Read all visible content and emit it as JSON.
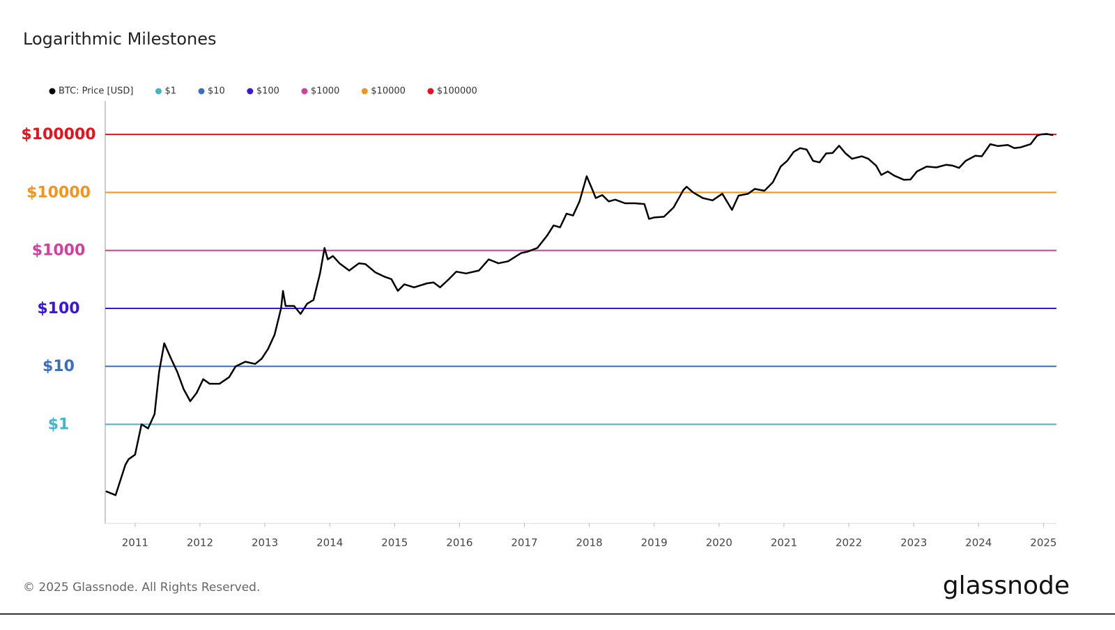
{
  "chart_data": {
    "type": "line",
    "title": "Logarithmic Milestones",
    "log_y": true,
    "series": [
      {
        "name": "BTC: Price [USD]",
        "color": "#000000",
        "x": [
          2010.55,
          2010.7,
          2010.85,
          2010.9,
          2011.0,
          2011.1,
          2011.2,
          2011.3,
          2011.37,
          2011.45,
          2011.55,
          2011.65,
          2011.75,
          2011.85,
          2011.95,
          2012.05,
          2012.15,
          2012.3,
          2012.45,
          2012.55,
          2012.7,
          2012.85,
          2012.95,
          2013.05,
          2013.15,
          2013.25,
          2013.28,
          2013.32,
          2013.45,
          2013.55,
          2013.65,
          2013.75,
          2013.85,
          2013.92,
          2013.97,
          2014.05,
          2014.15,
          2014.3,
          2014.45,
          2014.55,
          2014.7,
          2014.85,
          2014.95,
          2015.05,
          2015.15,
          2015.3,
          2015.5,
          2015.6,
          2015.7,
          2015.85,
          2015.95,
          2016.1,
          2016.3,
          2016.45,
          2016.6,
          2016.75,
          2016.95,
          2017.05,
          2017.2,
          2017.35,
          2017.45,
          2017.55,
          2017.65,
          2017.75,
          2017.85,
          2017.96,
          2018.05,
          2018.1,
          2018.2,
          2018.3,
          2018.4,
          2018.55,
          2018.7,
          2018.85,
          2018.92,
          2019.0,
          2019.15,
          2019.3,
          2019.45,
          2019.5,
          2019.6,
          2019.75,
          2019.9,
          2020.05,
          2020.2,
          2020.3,
          2020.45,
          2020.55,
          2020.7,
          2020.83,
          2020.95,
          2021.05,
          2021.15,
          2021.25,
          2021.35,
          2021.45,
          2021.55,
          2021.65,
          2021.75,
          2021.85,
          2021.95,
          2022.05,
          2022.2,
          2022.3,
          2022.42,
          2022.5,
          2022.6,
          2022.7,
          2022.85,
          2022.95,
          2023.05,
          2023.2,
          2023.35,
          2023.5,
          2023.6,
          2023.7,
          2023.8,
          2023.95,
          2024.05,
          2024.18,
          2024.3,
          2024.45,
          2024.55,
          2024.65,
          2024.8,
          2024.9,
          2024.96,
          2025.05,
          2025.15
        ],
        "values": [
          0.07,
          0.06,
          0.2,
          0.25,
          0.3,
          1.0,
          0.85,
          1.5,
          8,
          25,
          14,
          8,
          4,
          2.5,
          3.5,
          6,
          5,
          5,
          6.5,
          10,
          12,
          11,
          13.5,
          20,
          35,
          100,
          200,
          110,
          110,
          80,
          120,
          140,
          400,
          1100,
          700,
          800,
          600,
          450,
          600,
          580,
          420,
          350,
          320,
          200,
          260,
          230,
          270,
          280,
          230,
          330,
          430,
          400,
          450,
          700,
          600,
          650,
          900,
          950,
          1100,
          1800,
          2700,
          2500,
          4300,
          4000,
          7000,
          19000,
          11000,
          8000,
          9000,
          7000,
          7500,
          6500,
          6500,
          6300,
          3500,
          3700,
          3800,
          5500,
          11000,
          12500,
          10000,
          8000,
          7300,
          9500,
          5000,
          8800,
          9500,
          11500,
          10700,
          15000,
          28000,
          35000,
          50000,
          58000,
          55000,
          35000,
          33000,
          47000,
          48000,
          64000,
          47000,
          38000,
          42000,
          38000,
          29000,
          20000,
          23000,
          19500,
          16500,
          16700,
          23000,
          28000,
          27000,
          30000,
          29000,
          26500,
          35000,
          43000,
          42000,
          68000,
          63000,
          66000,
          58000,
          60000,
          68000,
          95000,
          100000,
          102000,
          97000
        ]
      }
    ],
    "reference_lines": [
      {
        "name": "$1",
        "color": "#3fb6c9",
        "value": 1
      },
      {
        "name": "$10",
        "color": "#3a6fc0",
        "value": 10
      },
      {
        "name": "$100",
        "color": "#3b14e0",
        "value": 100
      },
      {
        "name": "$1000",
        "color": "#d23fa0",
        "value": 1000
      },
      {
        "name": "$10000",
        "color": "#f7931a",
        "value": 10000
      },
      {
        "name": "$100000",
        "color": "#e8101a",
        "value": 100000
      }
    ],
    "xlim": [
      2010.54,
      2025.2
    ],
    "xticks": [
      2011,
      2012,
      2013,
      2014,
      2015,
      2016,
      2017,
      2018,
      2019,
      2020,
      2021,
      2022,
      2023,
      2024,
      2025
    ],
    "ylim": [
      0.02,
      400000
    ],
    "yticks": [
      {
        "value": 1,
        "label": "$1"
      },
      {
        "value": 10,
        "label": "$10"
      },
      {
        "value": 100,
        "label": "$100"
      },
      {
        "value": 1000,
        "label": "$1000"
      },
      {
        "value": 10000,
        "label": "$10000"
      },
      {
        "value": 100000,
        "label": "$100000"
      }
    ],
    "legend": "top-left"
  },
  "footer": "© 2025 Glassnode. All Rights Reserved.",
  "logo": "glassnode"
}
